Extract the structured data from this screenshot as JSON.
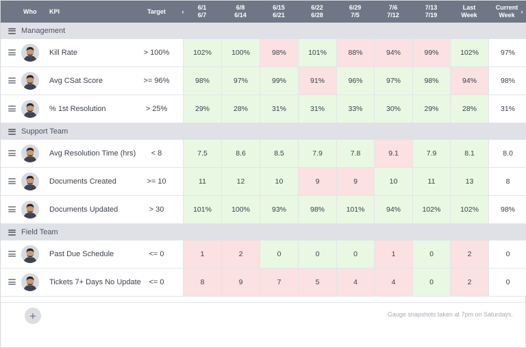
{
  "header": {
    "who": "Who",
    "kpi": "KPI",
    "target": "Target",
    "weeks": [
      {
        "top": "6/1",
        "bottom": "6/7"
      },
      {
        "top": "6/8",
        "bottom": "6/14"
      },
      {
        "top": "6/15",
        "bottom": "6/21"
      },
      {
        "top": "6/22",
        "bottom": "6/28"
      },
      {
        "top": "6/29",
        "bottom": "7/5"
      },
      {
        "top": "7/6",
        "bottom": "7/12"
      },
      {
        "top": "7/13",
        "bottom": "7/19"
      },
      {
        "top": "Last",
        "bottom": "Week"
      }
    ],
    "current": {
      "top": "Current",
      "bottom": "Week"
    },
    "prev_icon": "chevron-left-icon",
    "next_icon": "chevron-right-icon"
  },
  "sections": [
    {
      "title": "Management",
      "rows": [
        {
          "kpi": "Kill Rate",
          "target": "> 100%",
          "values": [
            "102%",
            "100%",
            "98%",
            "101%",
            "88%",
            "94%",
            "99%",
            "102%"
          ],
          "status": [
            "good",
            "good",
            "bad",
            "good",
            "bad",
            "bad",
            "bad",
            "good"
          ],
          "current": "97%"
        },
        {
          "kpi": "Avg CSat Score",
          "target": ">= 96%",
          "values": [
            "98%",
            "97%",
            "99%",
            "91%",
            "96%",
            "97%",
            "98%",
            "94%"
          ],
          "status": [
            "good",
            "good",
            "good",
            "bad",
            "good",
            "good",
            "good",
            "bad"
          ],
          "current": "98%"
        },
        {
          "kpi": "% 1st Resolution",
          "target": "> 25%",
          "values": [
            "29%",
            "28%",
            "31%",
            "31%",
            "33%",
            "30%",
            "29%",
            "28%"
          ],
          "status": [
            "good",
            "good",
            "good",
            "good",
            "good",
            "good",
            "good",
            "good"
          ],
          "current": "31%"
        }
      ]
    },
    {
      "title": "Support Team",
      "rows": [
        {
          "kpi": "Avg Resolution Time (hrs)",
          "target": "< 8",
          "values": [
            "7.5",
            "8.6",
            "8.5",
            "7.9",
            "7.8",
            "9.1",
            "7.9",
            "8.1"
          ],
          "status": [
            "good",
            "good",
            "good",
            "good",
            "good",
            "bad",
            "good",
            "good"
          ],
          "current": "8.0"
        },
        {
          "kpi": "Documents Created",
          "target": ">= 10",
          "values": [
            "11",
            "12",
            "10",
            "9",
            "9",
            "10",
            "11",
            "13"
          ],
          "status": [
            "good",
            "good",
            "good",
            "bad",
            "bad",
            "good",
            "good",
            "good"
          ],
          "current": "8"
        },
        {
          "kpi": "Documents Updated",
          "target": "> 30",
          "values": [
            "101%",
            "100%",
            "93%",
            "98%",
            "101%",
            "94%",
            "102%",
            "102%"
          ],
          "status": [
            "good",
            "good",
            "good",
            "good",
            "good",
            "good",
            "good",
            "good"
          ],
          "current": "98%"
        }
      ]
    },
    {
      "title": "Field Team",
      "rows": [
        {
          "kpi": "Past Due Schedule",
          "target": "<= 0",
          "values": [
            "1",
            "2",
            "0",
            "0",
            "0",
            "1",
            "0",
            "2"
          ],
          "status": [
            "bad",
            "bad",
            "good",
            "good",
            "good",
            "bad",
            "good",
            "bad"
          ],
          "current": "0"
        },
        {
          "kpi": "Tickets 7+ Days No Update",
          "target": "<= 0",
          "values": [
            "8",
            "9",
            "7",
            "5",
            "4",
            "4",
            "0",
            "2"
          ],
          "status": [
            "bad",
            "bad",
            "bad",
            "bad",
            "bad",
            "bad",
            "good",
            "bad"
          ],
          "current": "0"
        }
      ]
    }
  ],
  "add_button": "+",
  "footnote": "Gauge snapshots taken at 7pm on Saturdays.",
  "colors": {
    "header_bg": "#6f7787",
    "section_bg": "#dfe1e6",
    "good": "#e9f8e3",
    "bad": "#fbe1e1"
  }
}
